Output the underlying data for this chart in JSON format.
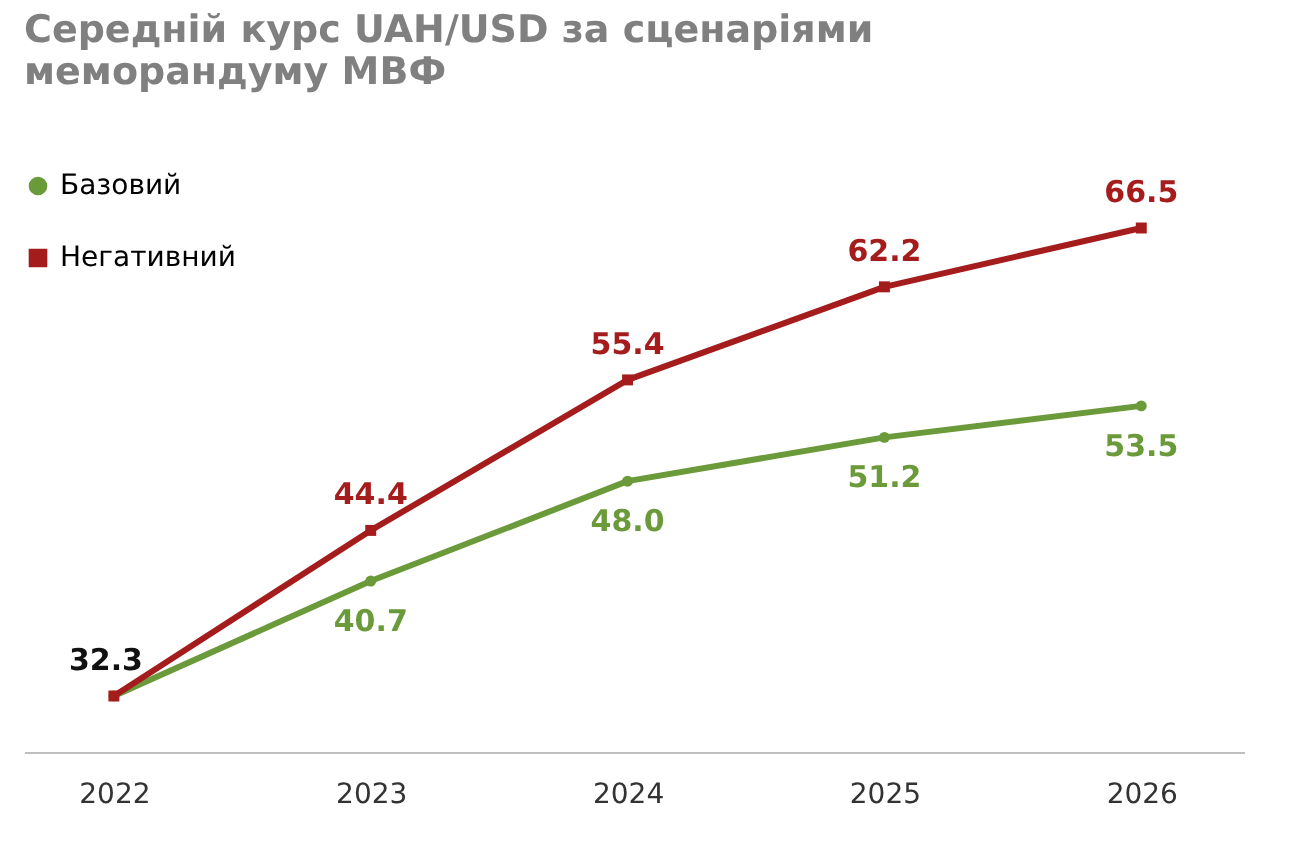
{
  "chart_data": {
    "type": "line",
    "title": "Середній курс UAH/USD за сценаріями меморандуму МВФ",
    "categories": [
      "2022",
      "2023",
      "2024",
      "2025",
      "2026"
    ],
    "series": [
      {
        "name": "Базовий",
        "color": "#6a9a3a",
        "marker": "circle",
        "values": [
          32.3,
          40.7,
          48.0,
          51.2,
          53.5
        ],
        "value_labels": [
          null,
          "40.7",
          "48.0",
          "51.2",
          "53.5"
        ]
      },
      {
        "name": "Негативний",
        "color": "#a51c1c",
        "marker": "square",
        "values": [
          32.3,
          44.4,
          55.4,
          62.2,
          66.5
        ],
        "value_labels": [
          null,
          "44.4",
          "55.4",
          "62.2",
          "66.5"
        ]
      }
    ],
    "annotations": [
      {
        "text": "32.3",
        "x": "2022",
        "y": 32.3
      }
    ],
    "legend": "top left",
    "grid": false,
    "tick_labels": "x",
    "line_style": "solid"
  }
}
